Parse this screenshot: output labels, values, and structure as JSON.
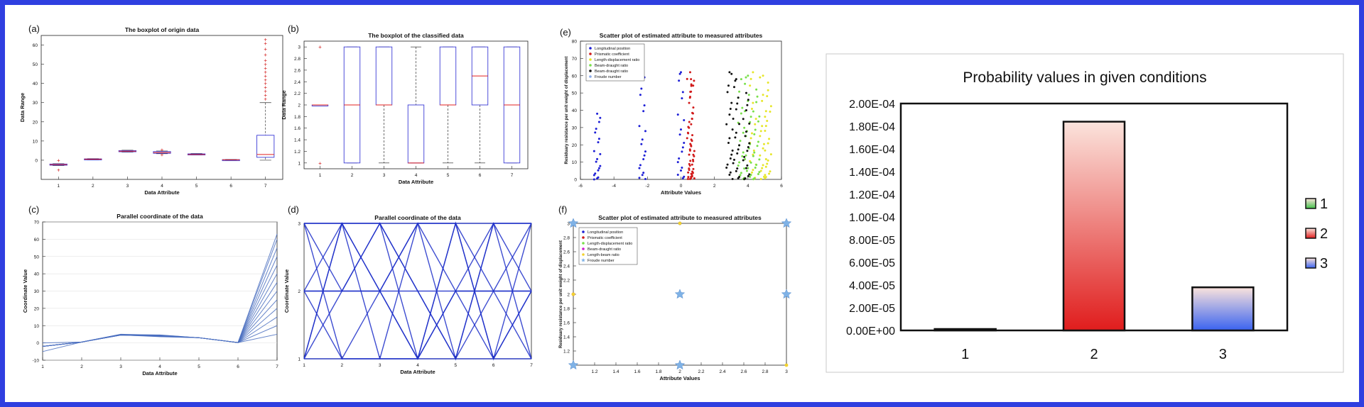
{
  "chart_data": [
    {
      "panel": "(a)",
      "type": "box",
      "title": "The boxplot of origin data",
      "xlabel": "Data Attribute",
      "ylabel": "Data Range",
      "categories": [
        "1",
        "2",
        "3",
        "4",
        "5",
        "6",
        "7"
      ],
      "ylim": [
        -10,
        65
      ],
      "yticks": [
        0,
        10,
        20,
        30,
        40,
        50,
        60
      ],
      "boxes": [
        {
          "cat": "1",
          "q1": -2.6,
          "median": -2.3,
          "q3": -2.0,
          "min": -2.8,
          "max": -1.8,
          "outliers": [
            -5,
            0
          ]
        },
        {
          "cat": "2",
          "q1": 0.4,
          "median": 0.55,
          "q3": 0.7,
          "min": 0.3,
          "max": 0.8,
          "outliers": []
        },
        {
          "cat": "3",
          "q1": 4.4,
          "median": 4.7,
          "q3": 5.0,
          "min": 4.2,
          "max": 5.2,
          "outliers": []
        },
        {
          "cat": "4",
          "q1": 3.6,
          "median": 4.0,
          "q3": 4.5,
          "min": 3.4,
          "max": 4.8,
          "outliers": [
            3,
            5.5
          ]
        },
        {
          "cat": "5",
          "q1": 2.8,
          "median": 3.0,
          "q3": 3.3,
          "min": 2.7,
          "max": 3.5,
          "outliers": []
        },
        {
          "cat": "6",
          "q1": 0.1,
          "median": 0.2,
          "q3": 0.3,
          "min": 0.05,
          "max": 0.4,
          "outliers": []
        },
        {
          "cat": "7",
          "q1": 1.5,
          "median": 3.0,
          "q3": 13.0,
          "min": 0,
          "max": 30,
          "outliers": [
            32,
            36,
            40,
            44,
            48,
            50,
            52,
            55,
            58,
            61,
            63,
            46,
            42,
            38,
            34
          ]
        }
      ]
    },
    {
      "panel": "(b)",
      "type": "box",
      "title": "The boxplot of the classified data",
      "xlabel": "Data Attribute",
      "ylabel": "Data Range",
      "categories": [
        "1",
        "2",
        "3",
        "4",
        "5",
        "6",
        "7"
      ],
      "ylim": [
        0.9,
        3.1
      ],
      "yticks": [
        1,
        1.2,
        1.4,
        1.6,
        1.8,
        2,
        2.2,
        2.4,
        2.6,
        2.8,
        3
      ],
      "boxes": [
        {
          "cat": "1",
          "q1": 2,
          "median": 2,
          "q3": 2,
          "min": 2,
          "max": 2,
          "outliers": [
            1,
            3
          ]
        },
        {
          "cat": "2",
          "q1": 1,
          "median": 2,
          "q3": 3,
          "min": 1,
          "max": 3,
          "outliers": []
        },
        {
          "cat": "3",
          "q1": 2,
          "median": 2,
          "q3": 3,
          "min": 1,
          "max": 3,
          "outliers": []
        },
        {
          "cat": "4",
          "q1": 1,
          "median": 1,
          "q3": 2,
          "min": 1,
          "max": 3,
          "outliers": []
        },
        {
          "cat": "5",
          "q1": 2,
          "median": 2,
          "q3": 3,
          "min": 1,
          "max": 3,
          "outliers": []
        },
        {
          "cat": "6",
          "q1": 2,
          "median": 2.5,
          "q3": 3,
          "min": 1,
          "max": 3,
          "outliers": []
        },
        {
          "cat": "7",
          "q1": 1,
          "median": 2,
          "q3": 3,
          "min": 1,
          "max": 3,
          "outliers": []
        }
      ]
    },
    {
      "panel": "(c)",
      "type": "line",
      "title": "Parallel coordinate of the data",
      "xlabel": "Data Attribute",
      "ylabel": "Coordinate Value",
      "x": [
        1,
        2,
        3,
        4,
        5,
        6,
        7
      ],
      "ylim": [
        -10,
        70
      ],
      "yticks": [
        -10,
        0,
        10,
        20,
        30,
        40,
        50,
        60,
        70
      ],
      "lines": [
        [
          -5,
          0.5,
          4.5,
          4,
          3,
          0.2,
          5
        ],
        [
          -2,
          0.5,
          4.7,
          3.8,
          3,
          0.2,
          10
        ],
        [
          -2,
          0.5,
          4.8,
          4.2,
          3,
          0.2,
          15
        ],
        [
          -2,
          0.5,
          5,
          4.5,
          3,
          0.2,
          20
        ],
        [
          -2,
          0.5,
          4.6,
          3.6,
          3,
          0.2,
          25
        ],
        [
          0,
          0.5,
          4.9,
          4.1,
          3,
          0.2,
          30
        ],
        [
          -2,
          0.5,
          4.7,
          4.4,
          3,
          0.2,
          35
        ],
        [
          -2,
          0.5,
          4.5,
          3.9,
          3,
          0.2,
          40
        ],
        [
          -2,
          0.5,
          4.8,
          4.3,
          3,
          0.2,
          45
        ],
        [
          -2,
          0.5,
          4.6,
          4.0,
          3,
          0.2,
          50
        ],
        [
          -2,
          0.5,
          4.9,
          3.7,
          3,
          0.2,
          55
        ],
        [
          -2,
          0.5,
          4.7,
          4.6,
          3,
          0.2,
          60
        ],
        [
          -2,
          0.5,
          4.5,
          4.2,
          3,
          0.2,
          63
        ]
      ]
    },
    {
      "panel": "(d)",
      "type": "line",
      "title": "Parallel coordinate of the data",
      "xlabel": "Data Attribute",
      "ylabel": "Coordinate Value",
      "x": [
        1,
        2,
        3,
        4,
        5,
        6,
        7
      ],
      "ylim": [
        1,
        3
      ],
      "yticks": [
        1,
        2,
        3
      ],
      "lines": [
        [
          2,
          1,
          2,
          3,
          1,
          3,
          2
        ],
        [
          3,
          3,
          1,
          1,
          3,
          1,
          3
        ],
        [
          1,
          3,
          3,
          2,
          1,
          2,
          1
        ],
        [
          2,
          2,
          3,
          1,
          2,
          3,
          3
        ],
        [
          3,
          1,
          1,
          3,
          3,
          2,
          2
        ],
        [
          1,
          2,
          2,
          1,
          3,
          1,
          1
        ],
        [
          2,
          3,
          2,
          2,
          1,
          3,
          3
        ],
        [
          3,
          2,
          3,
          3,
          2,
          1,
          2
        ],
        [
          1,
          1,
          1,
          1,
          2,
          2,
          3
        ],
        [
          2,
          2,
          2,
          3,
          3,
          3,
          1
        ],
        [
          3,
          3,
          3,
          2,
          2,
          2,
          2
        ],
        [
          1,
          3,
          2,
          1,
          1,
          1,
          2
        ]
      ]
    },
    {
      "panel": "(e)",
      "type": "scatter",
      "title": "Scatter plot of estimated attribute to measured attributes",
      "xlabel": "Attribute Values",
      "ylabel": "Residuary resistance per unit weight of displacement",
      "xlim": [
        -6,
        6
      ],
      "ylim": [
        0,
        80
      ],
      "xticks": [
        -6,
        -4,
        -2,
        0,
        2,
        4,
        6
      ],
      "yticks": [
        0,
        10,
        20,
        30,
        40,
        50,
        60,
        70,
        80
      ],
      "series": [
        {
          "name": "Longitudinal position",
          "color": "#1d1fd6",
          "x": [
            -5,
            -2.3,
            0
          ],
          "ymax": [
            38,
            60,
            62
          ]
        },
        {
          "name": "Prismatic coefficient",
          "color": "#d11a1a",
          "x": [
            0.55,
            0.6,
            0.62
          ],
          "ymax": [
            62,
            58,
            55
          ]
        },
        {
          "name": "Length-displacement ratio",
          "color": "#e6e62b",
          "x": [
            4.3,
            4.9,
            5.2
          ],
          "ymax": [
            62,
            60,
            56
          ]
        },
        {
          "name": "Beam-draught ratio",
          "color": "#79e04a",
          "x": [
            3.6,
            4.0,
            4.5
          ],
          "ymax": [
            58,
            60,
            52
          ]
        },
        {
          "name": "Beam-draught ratio",
          "color": "#111111",
          "x": [
            2.9,
            3.3,
            3.9
          ],
          "ymax": [
            62,
            58,
            50
          ]
        },
        {
          "name": "Froude number",
          "color": "#8aa9e8",
          "x": [],
          "ymax": []
        }
      ]
    },
    {
      "panel": "(f)",
      "type": "scatter",
      "title": "Scatter plot of estimated attribute to measured attributes",
      "xlabel": "Attribute Values",
      "ylabel": "Residuary resistance per unit weight of displacement",
      "xlim": [
        1,
        3
      ],
      "ylim": [
        1,
        3
      ],
      "xticks": [
        1.2,
        1.4,
        1.6,
        1.8,
        2,
        2.2,
        2.4,
        2.6,
        2.8,
        3
      ],
      "yticks": [
        1.2,
        1.4,
        1.6,
        1.8,
        2,
        2.2,
        2.4,
        2.6,
        2.8,
        3
      ],
      "series": [
        {
          "name": "Longitudinal position",
          "color": "#1d1fd6",
          "points": [
            [
              1,
              3
            ],
            [
              2,
              3
            ],
            [
              3,
              3
            ]
          ]
        },
        {
          "name": "Prismatic coefficient",
          "color": "#d11a1a",
          "points": [
            [
              1,
              2
            ]
          ]
        },
        {
          "name": "Length-displacement ratio",
          "color": "#79e04a",
          "points": []
        },
        {
          "name": "Beam-draught ratio",
          "color": "#d11ad1",
          "points": []
        },
        {
          "name": "Length-beam ratio",
          "color": "#f2d230",
          "points": [
            [
              1,
              3
            ],
            [
              2,
              3
            ],
            [
              1,
              1
            ],
            [
              3,
              1
            ],
            [
              1,
              2
            ]
          ]
        },
        {
          "name": "Froude number",
          "color": "#7fb2e6",
          "points": [
            [
              1,
              3
            ],
            [
              1,
              1
            ],
            [
              2,
              2
            ],
            [
              2,
              1
            ],
            [
              3,
              3
            ],
            [
              3,
              2
            ]
          ]
        }
      ]
    },
    {
      "panel": "main",
      "type": "bar",
      "title": "Probability values in given conditions",
      "categories": [
        "1",
        "2",
        "3"
      ],
      "values": [
        1e-06,
        0.000184,
        3.8e-05
      ],
      "ylim": [
        0,
        0.0002
      ],
      "yticks": [
        "0.00E+00",
        "2.00E-05",
        "4.00E-05",
        "6.00E-05",
        "8.00E-05",
        "1.00E-04",
        "1.20E-04",
        "1.40E-04",
        "1.60E-04",
        "1.80E-04",
        "2.00E-04"
      ],
      "series": [
        {
          "name": "1",
          "color": "#43c24a"
        },
        {
          "name": "2",
          "color": "#e01d1d"
        },
        {
          "name": "3",
          "color": "#3a63f0"
        }
      ]
    }
  ]
}
